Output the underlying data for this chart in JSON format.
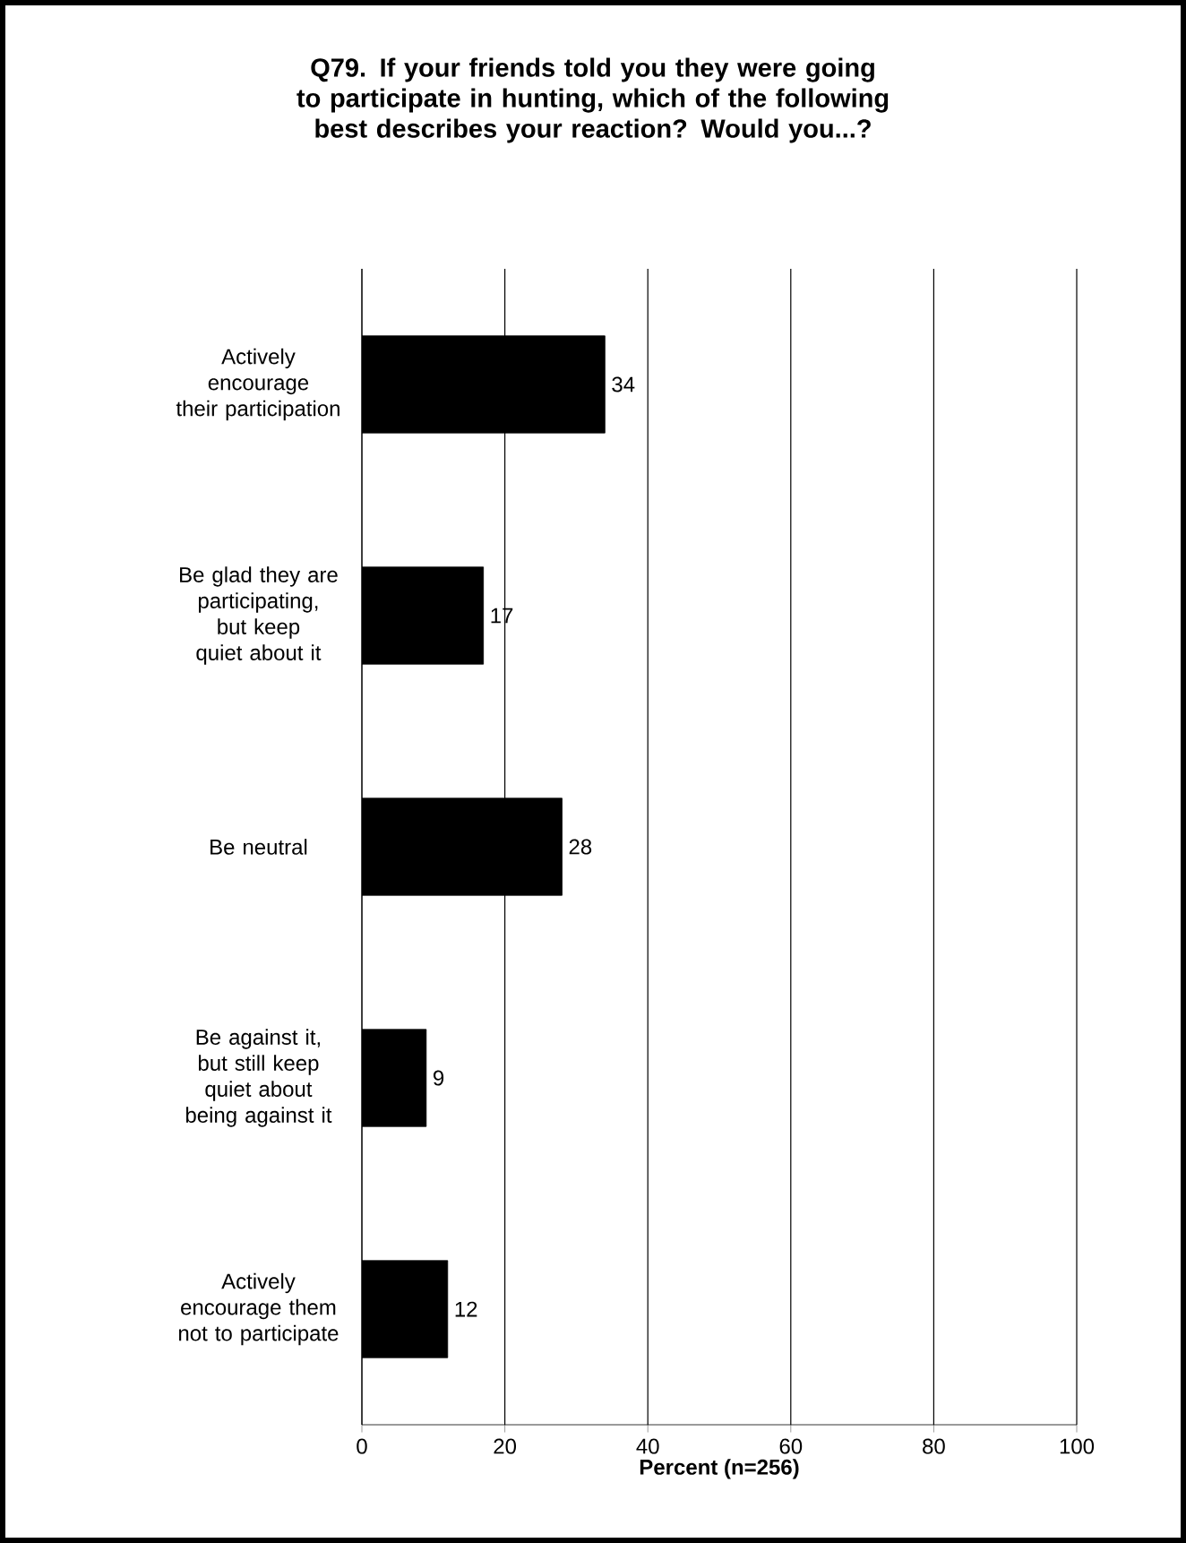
{
  "chart_data": {
    "type": "bar",
    "orientation": "horizontal",
    "title": "Q79. If your friends told you they were going to participate in hunting, which of the following best describes your reaction?  Would you...?",
    "xlabel": "Percent (n=256)",
    "categories": [
      "Actively encourage their participation",
      "Be glad they are participating, but keep quiet about it",
      "Be neutral",
      "Be against it, but still keep quiet about being against it",
      "Actively encourage them not to participate"
    ],
    "values": [
      34,
      17,
      28,
      9,
      12
    ],
    "color": "#000000",
    "xlim": [
      0,
      100
    ],
    "xticks": [
      0,
      20,
      40,
      60,
      80,
      100
    ],
    "grid": "x",
    "data_labels": true
  }
}
